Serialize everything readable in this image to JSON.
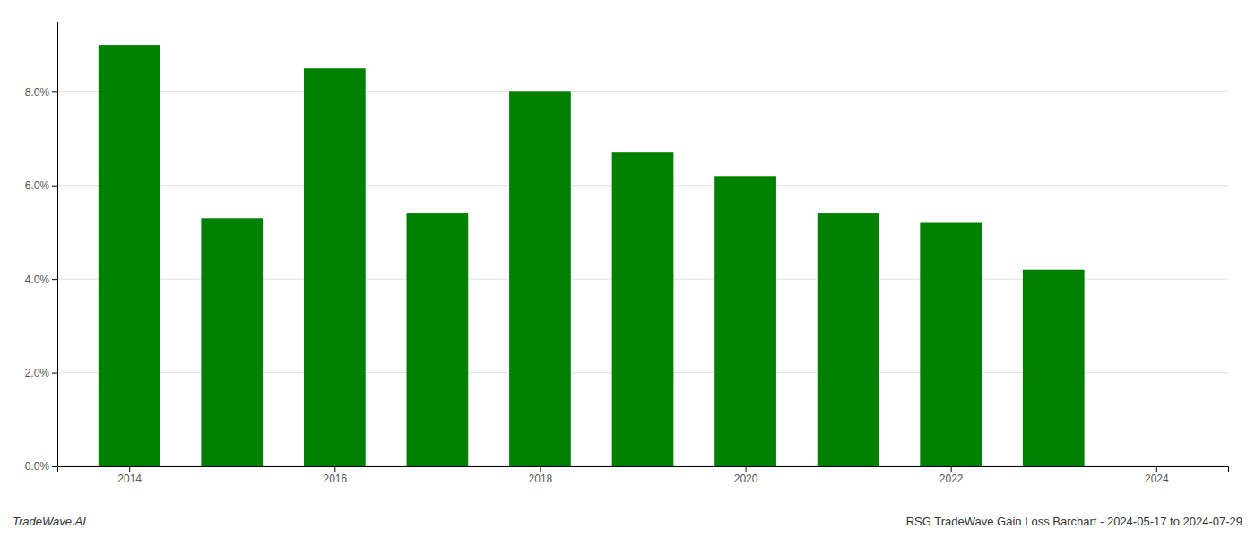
{
  "chart_data": {
    "type": "bar",
    "x": [
      2014,
      2015,
      2016,
      2017,
      2018,
      2019,
      2020,
      2021,
      2022,
      2023
    ],
    "values": [
      0.09,
      0.053,
      0.085,
      0.054,
      0.08,
      0.067,
      0.062,
      0.054,
      0.052,
      0.042
    ],
    "color": "#008000",
    "xlim": [
      2013.3,
      2024.7
    ],
    "xticks": [
      2014,
      2016,
      2018,
      2020,
      2022,
      2024
    ],
    "ylim": [
      0,
      0.095
    ],
    "yticks": [
      {
        "value": 0.0,
        "label": "0.0%"
      },
      {
        "value": 0.02,
        "label": "2.0%"
      },
      {
        "value": 0.04,
        "label": "4.0%"
      },
      {
        "value": 0.06,
        "label": "6.0%"
      },
      {
        "value": 0.08,
        "label": "8.0%"
      }
    ],
    "grid": true,
    "annotations": [
      "TradeWave.AI",
      "RSG TradeWave Gain Loss Barchart - 2024-05-17 to 2024-07-29"
    ]
  }
}
